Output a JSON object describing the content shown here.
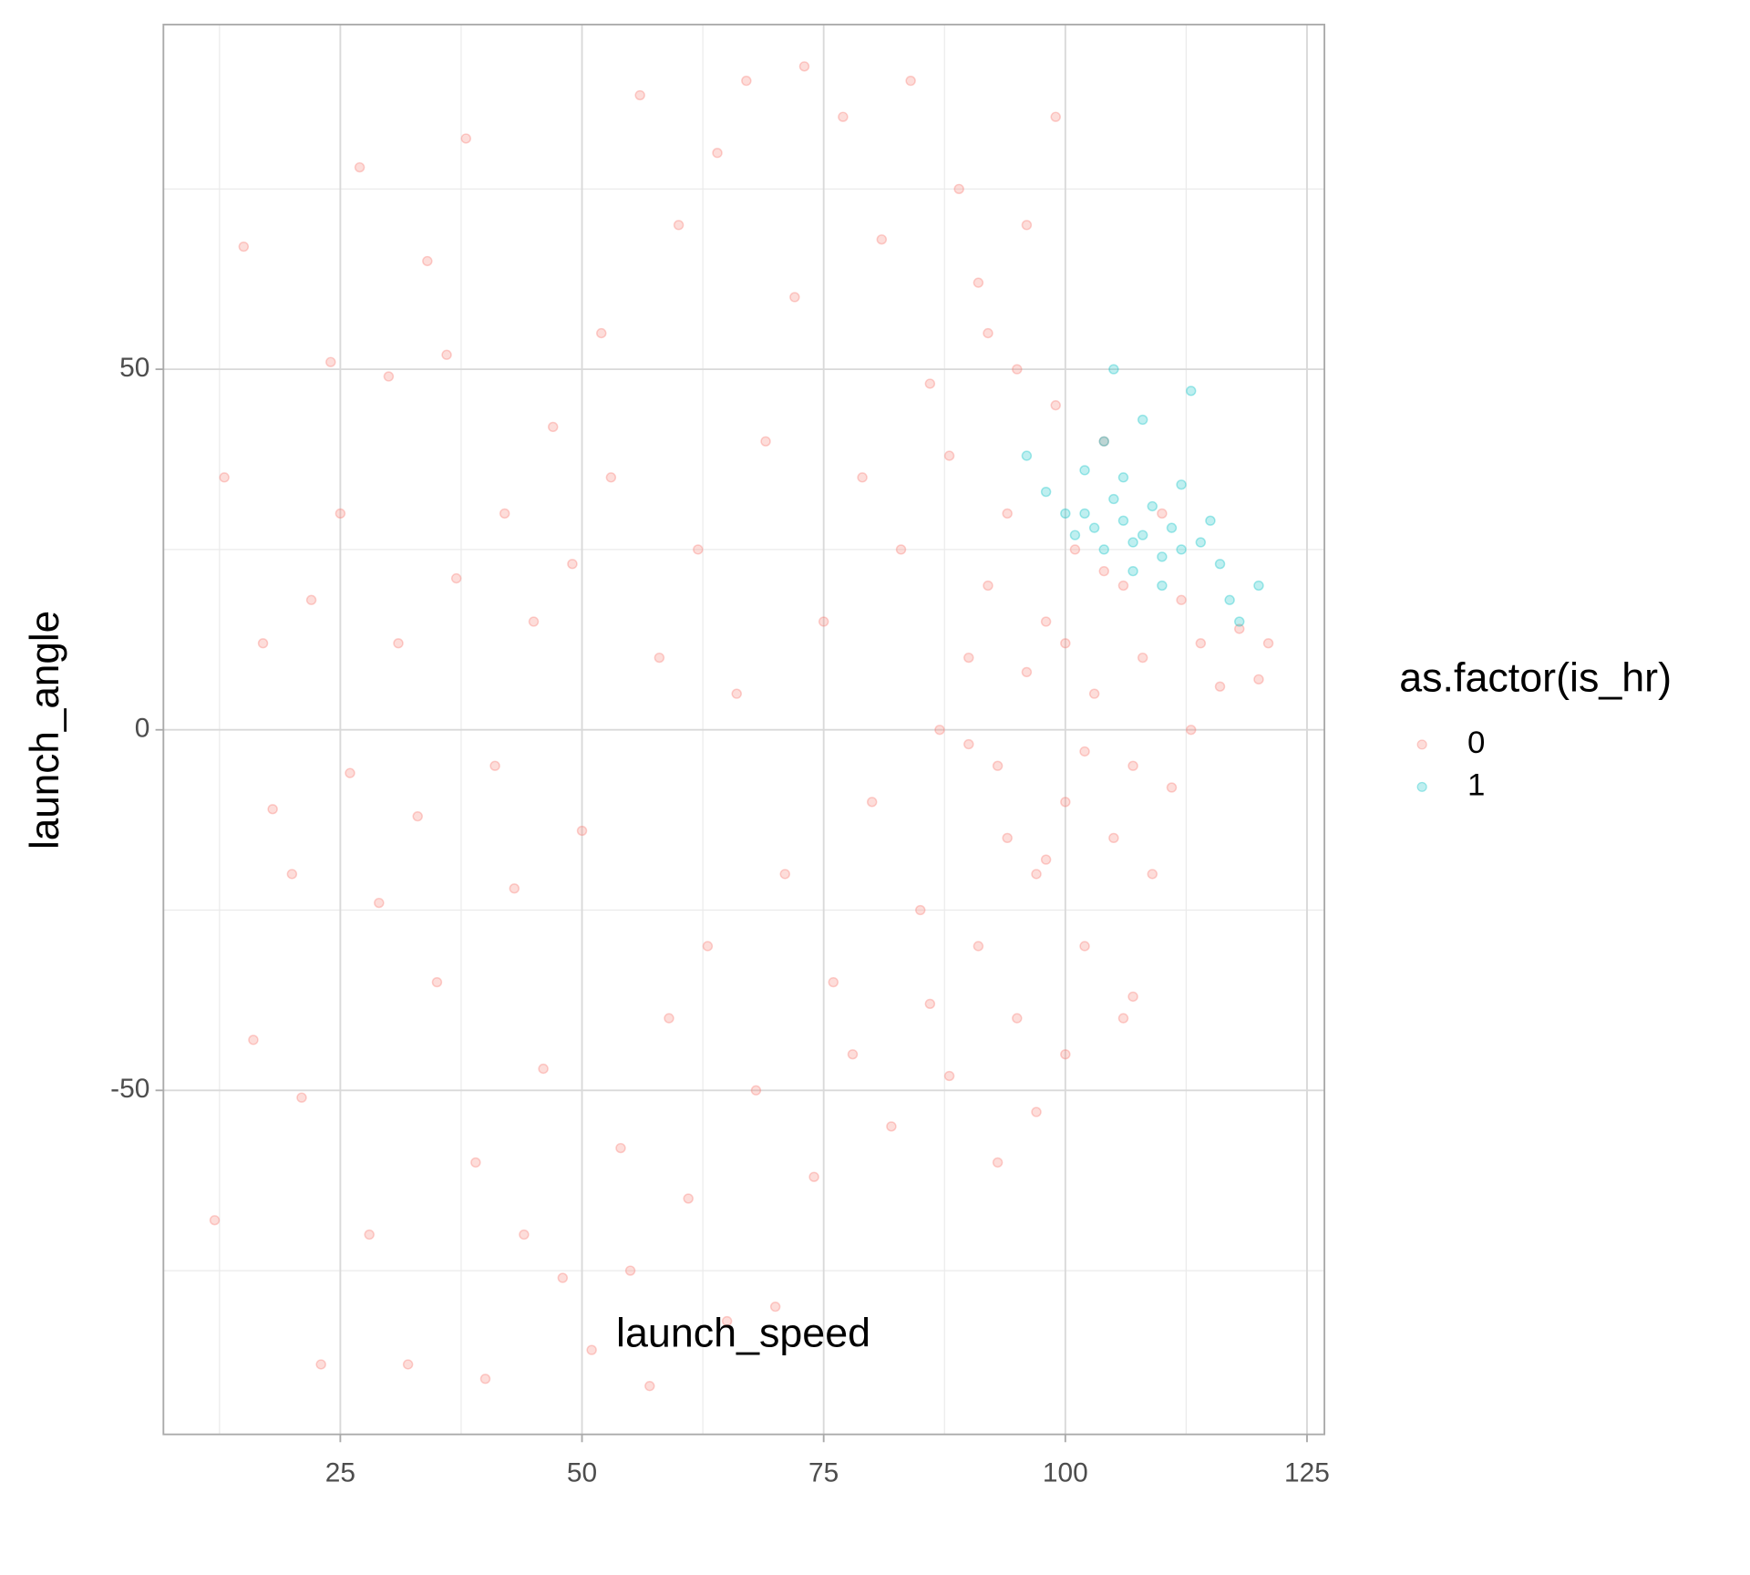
{
  "chart_data": {
    "type": "scatter",
    "x_label": "launch_speed",
    "y_label": "launch_angle",
    "legend_title": "as.factor(is_hr)",
    "legend_position": "right",
    "xlim": [
      6.7,
      126.8
    ],
    "ylim": [
      -97.7,
      97.8
    ],
    "xticks": [
      25,
      50,
      75,
      100,
      125
    ],
    "yticks": [
      -50,
      0,
      50
    ],
    "xminorticks": [
      12.5,
      37.5,
      62.5,
      87.5,
      112.5
    ],
    "yminorticks": [
      -75,
      -25,
      25,
      75
    ],
    "grid": true,
    "opacity": 0.25,
    "series": [
      {
        "name": "0",
        "color": "#F8766D",
        "x": [
          12,
          13,
          15,
          16,
          17,
          18,
          20,
          21,
          22,
          23,
          24,
          25,
          26,
          27,
          28,
          29,
          30,
          31,
          32,
          33,
          34,
          35,
          36,
          37,
          38,
          39,
          40,
          41,
          42,
          43,
          44,
          45,
          46,
          47,
          48,
          49,
          50,
          51,
          52,
          53,
          54,
          55,
          56,
          57,
          58,
          59,
          60,
          61,
          62,
          63,
          64,
          65,
          66,
          67,
          68,
          69,
          70,
          71,
          72,
          73,
          74,
          75,
          76,
          77,
          78,
          79,
          80,
          81,
          82,
          83,
          84,
          85,
          86,
          87,
          88,
          89,
          90,
          91,
          92,
          93,
          94,
          95,
          96,
          97,
          98,
          99,
          100,
          101,
          102,
          103,
          104,
          105,
          106,
          107,
          108,
          109,
          110,
          111,
          112,
          113,
          114,
          116,
          118,
          120,
          121,
          90,
          92,
          94,
          96,
          98,
          100,
          102,
          104,
          95,
          88,
          86,
          93,
          97,
          91,
          99,
          100,
          106,
          107
        ],
        "y": [
          -68,
          35,
          67,
          -43,
          12,
          -11,
          -20,
          -51,
          18,
          -88,
          51,
          30,
          -6,
          78,
          -70,
          -24,
          49,
          12,
          -88,
          -12,
          65,
          -35,
          52,
          21,
          82,
          -60,
          -90,
          -5,
          30,
          -22,
          -70,
          15,
          -47,
          42,
          -76,
          23,
          -14,
          -86,
          55,
          35,
          -58,
          -75,
          88,
          -91,
          10,
          -40,
          70,
          -65,
          25,
          -30,
          80,
          -82,
          5,
          90,
          -50,
          40,
          -80,
          -20,
          60,
          92,
          -62,
          15,
          -35,
          85,
          -45,
          35,
          -10,
          68,
          -55,
          25,
          90,
          -25,
          48,
          0,
          -48,
          75,
          10,
          -30,
          55,
          -5,
          30,
          -40,
          70,
          -20,
          15,
          45,
          -10,
          25,
          -30,
          5,
          40,
          -15,
          20,
          -5,
          10,
          -20,
          30,
          -8,
          18,
          0,
          12,
          6,
          14,
          7,
          12,
          -2,
          20,
          -15,
          8,
          -18,
          12,
          -3,
          22,
          50,
          38,
          -38,
          -60,
          -53,
          62,
          85,
          -45,
          -40,
          -37
        ]
      },
      {
        "name": "1",
        "color": "#00BFC4",
        "x": [
          96,
          98,
          100,
          101,
          102,
          103,
          104,
          105,
          106,
          107,
          108,
          109,
          110,
          111,
          112,
          113,
          114,
          115,
          116,
          117,
          118,
          120,
          104,
          106,
          108,
          110,
          112,
          105,
          102,
          107
        ],
        "y": [
          38,
          33,
          30,
          27,
          36,
          28,
          25,
          32,
          29,
          22,
          27,
          31,
          24,
          28,
          34,
          47,
          26,
          29,
          23,
          18,
          15,
          20,
          40,
          35,
          43,
          20,
          25,
          50,
          30,
          26
        ]
      }
    ]
  }
}
